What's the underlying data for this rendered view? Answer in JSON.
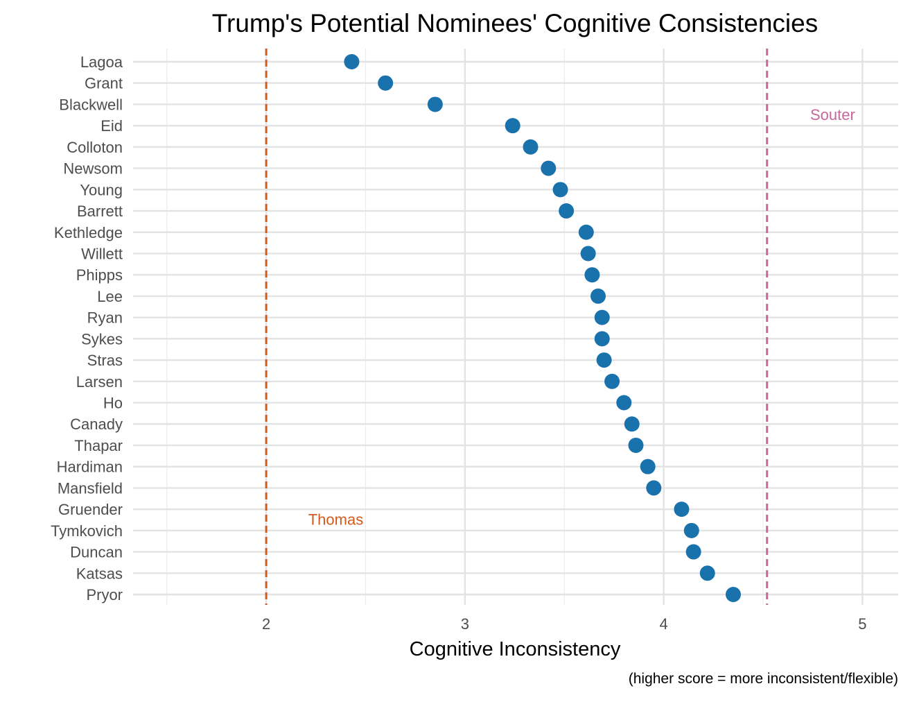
{
  "chart_data": {
    "type": "scatter",
    "title": "Trump's Potential Nominees' Cognitive Consistencies",
    "xlabel": "Cognitive Inconsistency",
    "caption": "(higher score = more inconsistent/flexible)",
    "xlim": [
      1.33,
      5.18
    ],
    "x_ticks": [
      2,
      3,
      4,
      5
    ],
    "grid": true,
    "point_color": "#1a72ad",
    "points": [
      {
        "name": "Lagoa",
        "value": 2.43
      },
      {
        "name": "Grant",
        "value": 2.6
      },
      {
        "name": "Blackwell",
        "value": 2.85
      },
      {
        "name": "Eid",
        "value": 3.24
      },
      {
        "name": "Colloton",
        "value": 3.33
      },
      {
        "name": "Newsom",
        "value": 3.42
      },
      {
        "name": "Young",
        "value": 3.48
      },
      {
        "name": "Barrett",
        "value": 3.51
      },
      {
        "name": "Kethledge",
        "value": 3.61
      },
      {
        "name": "Willett",
        "value": 3.62
      },
      {
        "name": "Phipps",
        "value": 3.64
      },
      {
        "name": "Lee",
        "value": 3.67
      },
      {
        "name": "Ryan",
        "value": 3.69
      },
      {
        "name": "Sykes",
        "value": 3.69
      },
      {
        "name": "Stras",
        "value": 3.7
      },
      {
        "name": "Larsen",
        "value": 3.74
      },
      {
        "name": "Ho",
        "value": 3.8
      },
      {
        "name": "Canady",
        "value": 3.84
      },
      {
        "name": "Thapar",
        "value": 3.86
      },
      {
        "name": "Hardiman",
        "value": 3.92
      },
      {
        "name": "Mansfield",
        "value": 3.95
      },
      {
        "name": "Gruender",
        "value": 4.09
      },
      {
        "name": "Tymkovich",
        "value": 4.14
      },
      {
        "name": "Duncan",
        "value": 4.15
      },
      {
        "name": "Katsas",
        "value": 4.22
      },
      {
        "name": "Pryor",
        "value": 4.35
      }
    ],
    "reference_lines": [
      {
        "name": "Thomas",
        "value": 2.0,
        "color": "#d35a1a",
        "label_anchor_x": 2.35,
        "label_row": 21.5
      },
      {
        "name": "Souter",
        "value": 4.52,
        "color": "#c8679b",
        "label_anchor_x": 4.85,
        "label_row": 2.5
      }
    ]
  }
}
